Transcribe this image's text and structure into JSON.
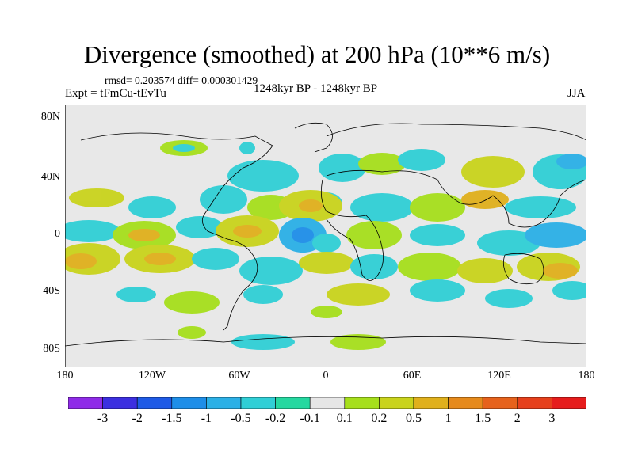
{
  "title": "Divergence (smoothed) at 200 hPa (10**6 m/s)",
  "stats": "rmsd= 0.203574 diff= 0.000301429",
  "expt": "Expt = tFmCu-tEvTu",
  "period": "1248kyr BP - 1248kyr BP",
  "season": "JJA",
  "lat_labels": [
    "80N",
    "40N",
    "0",
    "40S",
    "80S"
  ],
  "lon_labels": [
    "180",
    "120W",
    "60W",
    "0",
    "60E",
    "120E",
    "180"
  ],
  "colorbar": {
    "labels": [
      "-3",
      "-2",
      "-1.5",
      "-1",
      "-0.5",
      "-0.2",
      "-0.1",
      "0.1",
      "0.2",
      "0.5",
      "1",
      "1.5",
      "2",
      "3"
    ],
    "colors": [
      "#8f2be8",
      "#3c2fe0",
      "#1e5ae6",
      "#1e8ee8",
      "#2bb0e6",
      "#30cfd6",
      "#25d8a0",
      "#e6e6e6",
      "#a6df1c",
      "#c9d31c",
      "#e0b01c",
      "#e68a1c",
      "#e6621c",
      "#e6401c",
      "#e61c1c"
    ]
  },
  "colors": {
    "ocean_land_bg": "#e8e8e8"
  }
}
